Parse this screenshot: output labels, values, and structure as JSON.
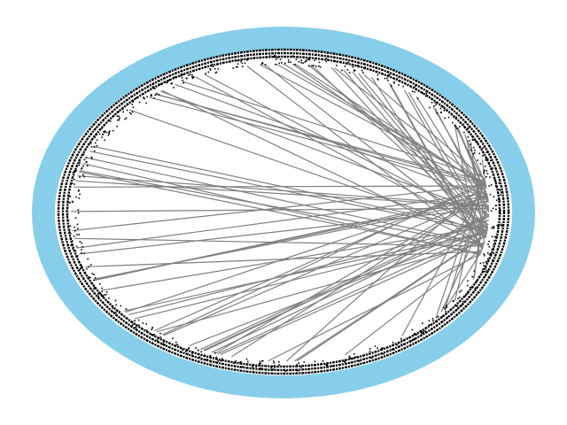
{
  "diagram": {
    "type": "circular-network",
    "node_color": "#87CEEB",
    "edge_color": "#808080",
    "label_color": "#000000",
    "labels_visible": true,
    "hub": "right",
    "node_count": 300,
    "edge_count": 90
  }
}
